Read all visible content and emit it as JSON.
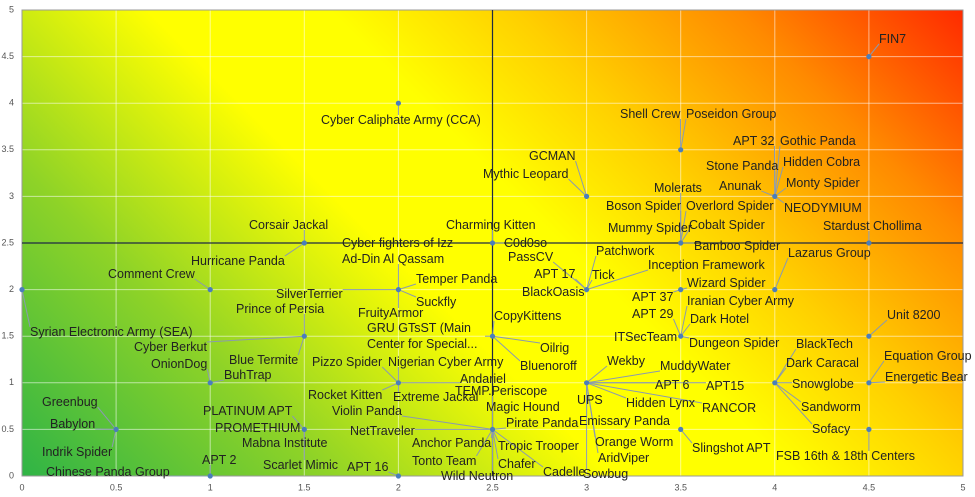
{
  "chart_data": {
    "type": "scatter",
    "xlim": [
      0,
      5
    ],
    "ylim": [
      0,
      5
    ],
    "xticks": [
      0,
      0.5,
      1,
      1.5,
      2,
      2.5,
      3,
      3.5,
      4,
      4.5,
      5
    ],
    "yticks": [
      0,
      0.5,
      1,
      1.5,
      2,
      2.5,
      3,
      3.5,
      4,
      4.5,
      5
    ],
    "grid": true,
    "color": "#4a7ebb",
    "crosshair": {
      "x": 2.5,
      "y": 2.5
    },
    "points": [
      {
        "x": 0,
        "y": 2,
        "labels": [
          "Syrian Electronic Army (SEA)"
        ]
      },
      {
        "x": 1,
        "y": 2,
        "labels": [
          "Comment Crew"
        ]
      },
      {
        "x": 1.5,
        "y": 2.5,
        "labels": [
          "Corsair Jackal",
          "Hurricane Panda"
        ]
      },
      {
        "x": 2,
        "y": 4,
        "labels": [
          "Cyber Caliphate Army (CCA)"
        ]
      },
      {
        "x": 2,
        "y": 2,
        "labels": [
          "SilverTerrier",
          "Temper Panda",
          "Suckfly",
          "FruityArmor",
          "Cyber fighters of Izz Ad-Din Al Qassam"
        ]
      },
      {
        "x": 1.5,
        "y": 1.5,
        "labels": [
          "Prince of Persia",
          "Cyber Berkut",
          "Blue Termite"
        ]
      },
      {
        "x": 1,
        "y": 1,
        "labels": [
          "OnionDog",
          "BuhTrap"
        ]
      },
      {
        "x": 0.5,
        "y": 0.5,
        "labels": [
          "Greenbug",
          "Babylon",
          "Indrik Spider"
        ]
      },
      {
        "x": 1,
        "y": 0,
        "labels": [
          "APT 2",
          "Chinese Panda Group"
        ]
      },
      {
        "x": 1.5,
        "y": 0.5,
        "labels": [
          "PLATINUM APT",
          "PROMETHIUM",
          "Mabna Institute",
          "Scarlet Mimic"
        ]
      },
      {
        "x": 2,
        "y": 0,
        "labels": [
          "APT 16"
        ]
      },
      {
        "x": 2,
        "y": 1,
        "labels": [
          "Pizzo Spider",
          "Nigerian Cyber Army",
          "Andariel",
          "Rocket Kitten",
          "Extreme Jackal"
        ]
      },
      {
        "x": 2.5,
        "y": 0.5,
        "labels": [
          "Violin Panda",
          "NetTraveler",
          "TEMP.Periscope",
          "Magic Hound",
          "Pirate Panda",
          "Anchor Panda",
          "Tonto Team",
          "Wild Neutron",
          "Tropic Trooper",
          "Chafer",
          "Cadelle"
        ]
      },
      {
        "x": 2.5,
        "y": 1.5,
        "labels": [
          "GRU GTsST (Main Center for Special...",
          "CopyKittens",
          "Oilrig",
          "Bluenoroff"
        ]
      },
      {
        "x": 2.5,
        "y": 2.5,
        "labels": [
          "Charming Kitten",
          "C0d0so"
        ]
      },
      {
        "x": 3,
        "y": 3,
        "labels": [
          "GCMAN",
          "Mythic Leopard"
        ]
      },
      {
        "x": 3,
        "y": 2,
        "labels": [
          "Patchwork",
          "PassCV",
          "APT 17",
          "Tick",
          "BlackOasis",
          "Inception Framework"
        ]
      },
      {
        "x": 3,
        "y": 1,
        "labels": [
          "Wekby",
          "MuddyWater",
          "UPS",
          "APT 6",
          "APT15",
          "Hidden Lynx",
          "RANCOR",
          "Emissary Panda",
          "Orange Worm",
          "AridViper",
          "Sowbug"
        ]
      },
      {
        "x": 3.5,
        "y": 3.5,
        "labels": [
          "Shell Crew",
          "Poseidon Group"
        ]
      },
      {
        "x": 3.5,
        "y": 2.5,
        "labels": [
          "Molerats",
          "Boson Spider",
          "Overlord Spider",
          "Mummy Spider",
          "Cobalt Spider",
          "Bamboo Spider"
        ]
      },
      {
        "x": 3.5,
        "y": 2,
        "labels": [
          "Wizard Spider",
          "APT 37"
        ]
      },
      {
        "x": 3.5,
        "y": 1.5,
        "labels": [
          "Iranian Cyber Army",
          "APT 29",
          "Dark Hotel",
          "ITSecTeam",
          "Dungeon Spider"
        ]
      },
      {
        "x": 3.5,
        "y": 0.5,
        "labels": [
          "Slingshot APT"
        ]
      },
      {
        "x": 4,
        "y": 3,
        "labels": [
          "APT 32",
          "Gothic Panda",
          "Stone Panda",
          "Hidden Cobra",
          "Anunak",
          "Monty Spider",
          "NEODYMIUM"
        ]
      },
      {
        "x": 4,
        "y": 2,
        "labels": [
          "Lazarus Group"
        ]
      },
      {
        "x": 4,
        "y": 1,
        "labels": [
          "BlackTech",
          "Dark Caracal",
          "Snowglobe",
          "Sandworm",
          "Sofacy"
        ]
      },
      {
        "x": 4.5,
        "y": 4.5,
        "labels": [
          "FIN7"
        ]
      },
      {
        "x": 4.5,
        "y": 2.5,
        "labels": [
          "Stardust Chollima"
        ]
      },
      {
        "x": 4.5,
        "y": 1.5,
        "labels": [
          "Unit 8200"
        ]
      },
      {
        "x": 4.5,
        "y": 1,
        "labels": [
          "Equation Group",
          "Energetic Bear"
        ]
      },
      {
        "x": 4.5,
        "y": 0.5,
        "labels": [
          "FSB 16th & 18th Centers"
        ]
      }
    ]
  }
}
